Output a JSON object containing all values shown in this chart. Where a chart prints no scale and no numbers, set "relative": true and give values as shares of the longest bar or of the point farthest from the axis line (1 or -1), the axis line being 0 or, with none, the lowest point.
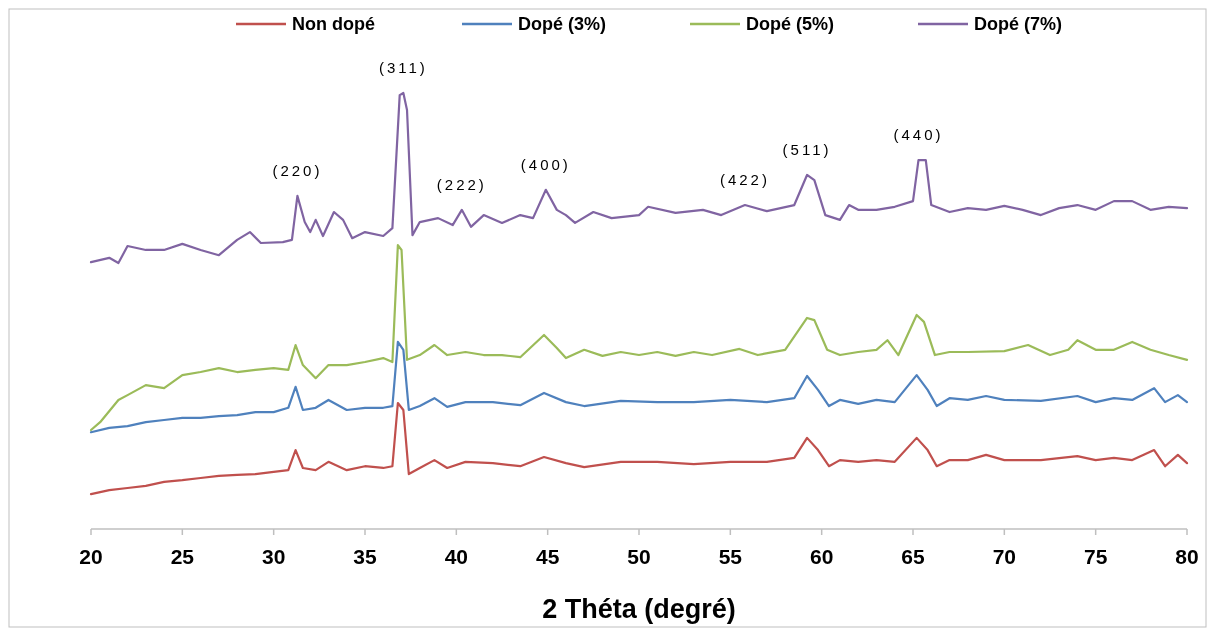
{
  "chart_data": {
    "type": "line",
    "relative": true,
    "xlabel": "2 Théta (degré)",
    "xlim": [
      20,
      80
    ],
    "xticks": [
      20,
      25,
      30,
      35,
      40,
      45,
      50,
      55,
      60,
      65,
      70,
      75,
      80
    ],
    "legend": "top",
    "annotations": [
      {
        "text": "(220)",
        "x": 31.3,
        "y": 0.764
      },
      {
        "text": "(311)",
        "x": 37.1,
        "y": 1
      },
      {
        "text": "(222)",
        "x": 40.3,
        "y": 0.732
      },
      {
        "text": "(400)",
        "x": 44.9,
        "y": 0.778
      },
      {
        "text": "(422)",
        "x": 55.8,
        "y": 0.743
      },
      {
        "text": "(511)",
        "x": 59.2,
        "y": 0.812
      },
      {
        "text": "(440)",
        "x": 65.3,
        "y": 0.846
      }
    ],
    "series": [
      {
        "name": "Non dopé",
        "color": "#c0504d",
        "x": [
          20,
          21,
          22,
          23,
          24,
          25,
          26,
          27,
          28,
          29,
          30,
          30.8,
          31.2,
          31.6,
          32.3,
          33,
          34,
          35,
          36,
          36.5,
          36.8,
          37.1,
          37.4,
          38,
          38.8,
          39.5,
          40.5,
          42,
          43.5,
          44.8,
          46,
          47,
          49,
          51,
          53,
          55,
          57,
          58.5,
          59.2,
          59.8,
          60.4,
          61,
          62,
          63,
          64,
          65.2,
          65.8,
          66.3,
          67,
          68,
          69,
          70,
          72,
          74,
          75,
          76,
          77,
          78.2,
          78.8,
          79.5,
          80
        ],
        "values": [
          0.08,
          0.089,
          0.094,
          0.099,
          0.108,
          0.112,
          0.117,
          0.122,
          0.124,
          0.126,
          0.131,
          0.135,
          0.181,
          0.14,
          0.135,
          0.154,
          0.135,
          0.144,
          0.14,
          0.144,
          0.289,
          0.273,
          0.126,
          0.14,
          0.158,
          0.14,
          0.154,
          0.151,
          0.144,
          0.165,
          0.151,
          0.142,
          0.154,
          0.154,
          0.149,
          0.154,
          0.154,
          0.163,
          0.209,
          0.181,
          0.144,
          0.158,
          0.154,
          0.158,
          0.154,
          0.209,
          0.181,
          0.144,
          0.158,
          0.158,
          0.17,
          0.158,
          0.158,
          0.167,
          0.158,
          0.163,
          0.158,
          0.181,
          0.144,
          0.17,
          0.151
        ]
      },
      {
        "name": "Dopé (3%)",
        "color": "#4f81bd",
        "x": [
          20,
          21,
          22,
          23,
          24,
          25,
          26,
          27,
          28,
          29,
          30,
          30.8,
          31.2,
          31.6,
          32.3,
          33,
          34,
          35,
          36,
          36.5,
          36.8,
          37.1,
          37.4,
          38,
          38.8,
          39.5,
          40.5,
          42,
          43.5,
          44.8,
          46,
          47,
          49,
          51,
          53,
          55,
          57,
          58.5,
          59.2,
          59.8,
          60.4,
          61,
          62,
          63,
          64,
          65.2,
          65.8,
          66.3,
          67,
          68,
          69,
          70,
          72,
          74,
          75,
          76,
          77,
          78.2,
          78.8,
          79.5,
          80
        ],
        "values": [
          0.222,
          0.232,
          0.236,
          0.245,
          0.25,
          0.255,
          0.255,
          0.259,
          0.261,
          0.268,
          0.268,
          0.278,
          0.326,
          0.273,
          0.278,
          0.296,
          0.273,
          0.278,
          0.278,
          0.282,
          0.429,
          0.411,
          0.273,
          0.282,
          0.3,
          0.28,
          0.291,
          0.291,
          0.284,
          0.312,
          0.291,
          0.282,
          0.294,
          0.291,
          0.291,
          0.296,
          0.291,
          0.3,
          0.351,
          0.319,
          0.282,
          0.296,
          0.287,
          0.296,
          0.291,
          0.353,
          0.319,
          0.282,
          0.3,
          0.296,
          0.305,
          0.296,
          0.294,
          0.305,
          0.291,
          0.3,
          0.296,
          0.323,
          0.291,
          0.307,
          0.291
        ]
      },
      {
        "name": "Dopé (5%)",
        "color": "#9bbb59",
        "x": [
          20,
          20.5,
          21.5,
          22,
          23,
          24,
          25,
          26,
          27,
          28,
          29,
          30,
          30.8,
          31.2,
          31.6,
          32.3,
          33,
          34,
          35,
          36,
          36.5,
          36.8,
          37,
          37.3,
          38,
          38.8,
          39.5,
          40.5,
          41.5,
          42.5,
          43.5,
          44.8,
          45.5,
          46,
          47,
          48,
          49,
          50,
          51,
          52,
          53,
          54,
          55.5,
          56.5,
          58,
          59.2,
          59.6,
          60.3,
          61,
          62,
          63,
          63.6,
          64.2,
          65.2,
          65.6,
          66.2,
          67,
          68,
          70,
          71.3,
          72.5,
          73.5,
          74,
          75,
          76,
          77,
          78,
          79,
          80
        ],
        "values": [
          0.227,
          0.245,
          0.296,
          0.307,
          0.33,
          0.323,
          0.353,
          0.36,
          0.369,
          0.36,
          0.365,
          0.369,
          0.365,
          0.422,
          0.376,
          0.346,
          0.376,
          0.376,
          0.383,
          0.392,
          0.383,
          0.651,
          0.64,
          0.388,
          0.399,
          0.422,
          0.399,
          0.406,
          0.399,
          0.399,
          0.394,
          0.445,
          0.415,
          0.392,
          0.411,
          0.397,
          0.406,
          0.399,
          0.406,
          0.397,
          0.406,
          0.399,
          0.413,
          0.399,
          0.411,
          0.484,
          0.479,
          0.411,
          0.399,
          0.406,
          0.411,
          0.433,
          0.399,
          0.491,
          0.475,
          0.399,
          0.406,
          0.406,
          0.408,
          0.422,
          0.399,
          0.411,
          0.433,
          0.411,
          0.411,
          0.429,
          0.411,
          0.399,
          0.388
        ]
      },
      {
        "name": "Dopé (7%)",
        "color": "#8064a2",
        "x": [
          20,
          21,
          21.5,
          22,
          23,
          24,
          25,
          26,
          27,
          28,
          28.7,
          29.3,
          30.5,
          31,
          31.3,
          31.7,
          32,
          32.3,
          32.7,
          33.3,
          33.8,
          34.3,
          35,
          36,
          36.5,
          36.9,
          37.1,
          37.3,
          37.6,
          38,
          39,
          39.8,
          40.3,
          40.8,
          41.5,
          42.5,
          43.5,
          44.2,
          44.9,
          45.5,
          46,
          46.5,
          47.5,
          48.5,
          50,
          50.5,
          52,
          53.5,
          54.5,
          55.8,
          57,
          58.5,
          59.2,
          59.6,
          60.2,
          61,
          61.5,
          62,
          63,
          64,
          65,
          65.3,
          65.7,
          66,
          67,
          68,
          69,
          70,
          71,
          72,
          73,
          74,
          75,
          76,
          77,
          78,
          79,
          80
        ],
        "values": [
          0.612,
          0.622,
          0.61,
          0.649,
          0.64,
          0.64,
          0.654,
          0.64,
          0.628,
          0.663,
          0.681,
          0.656,
          0.658,
          0.663,
          0.764,
          0.704,
          0.681,
          0.709,
          0.672,
          0.727,
          0.709,
          0.667,
          0.681,
          0.672,
          0.69,
          0.995,
          1,
          0.961,
          0.674,
          0.704,
          0.713,
          0.697,
          0.732,
          0.693,
          0.72,
          0.702,
          0.72,
          0.713,
          0.778,
          0.732,
          0.72,
          0.702,
          0.727,
          0.713,
          0.72,
          0.739,
          0.725,
          0.732,
          0.72,
          0.743,
          0.729,
          0.743,
          0.812,
          0.8,
          0.72,
          0.709,
          0.743,
          0.732,
          0.732,
          0.739,
          0.752,
          0.846,
          0.846,
          0.743,
          0.727,
          0.736,
          0.732,
          0.741,
          0.732,
          0.72,
          0.736,
          0.743,
          0.732,
          0.752,
          0.752,
          0.732,
          0.739,
          0.736
        ]
      }
    ]
  }
}
